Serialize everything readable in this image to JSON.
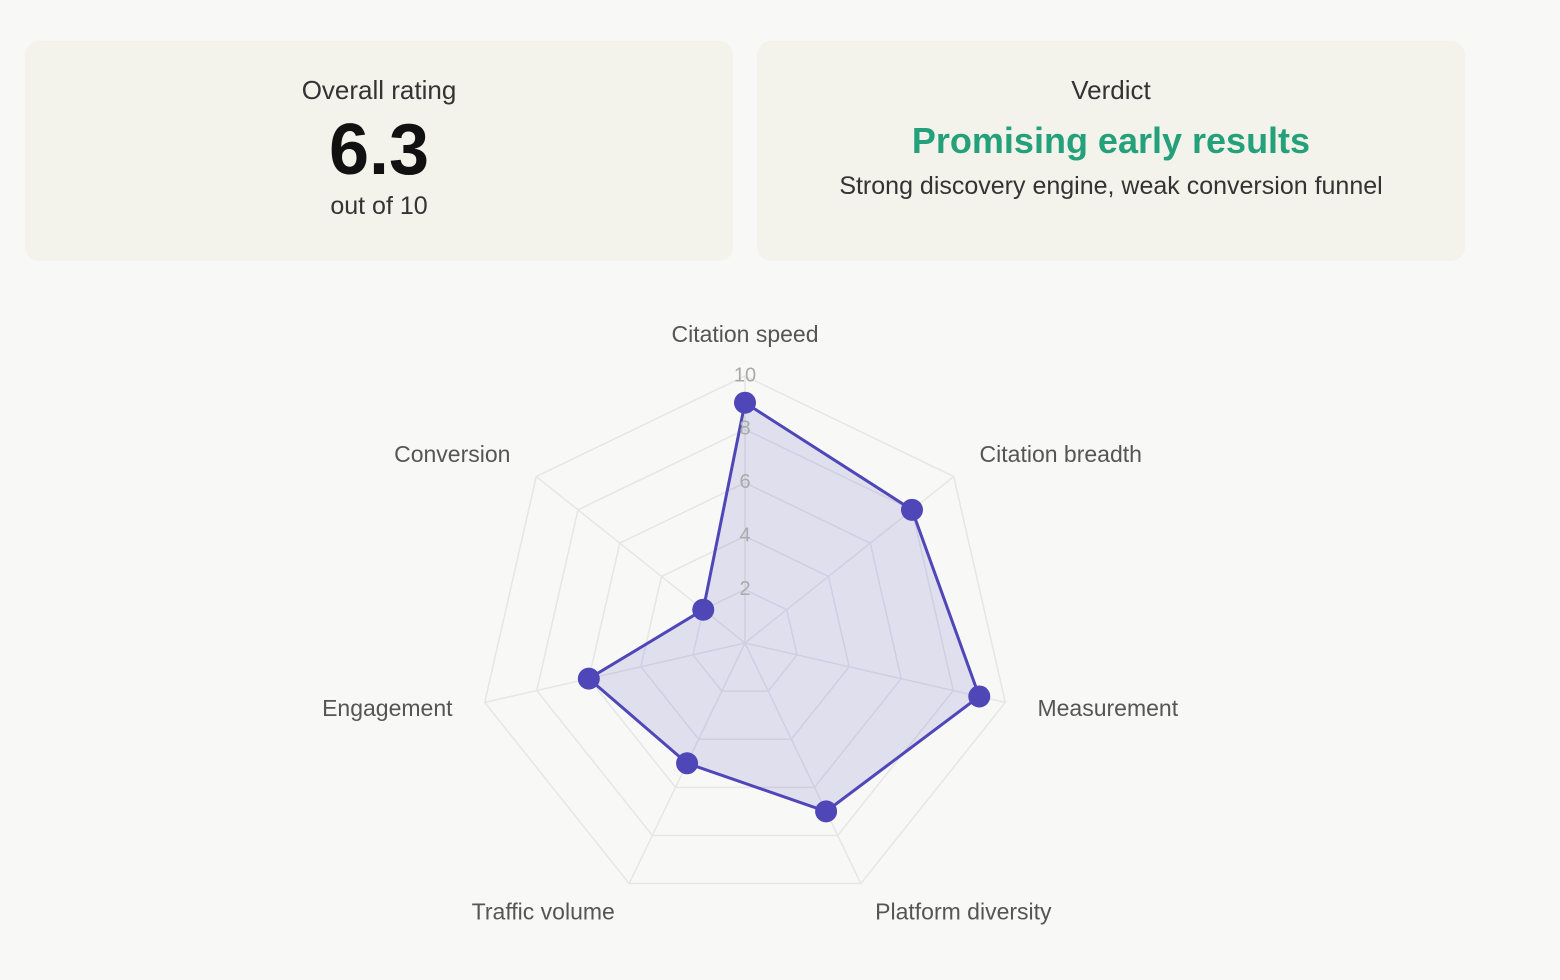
{
  "cards": {
    "overall": {
      "label": "Overall rating",
      "value": "6.3",
      "sub": "out of 10"
    },
    "verdict": {
      "label": "Verdict",
      "headline": "Promising early results",
      "detail": "Strong discovery engine, weak conversion funnel"
    }
  },
  "chart_data": {
    "type": "radar",
    "categories": [
      "Citation speed",
      "Citation breadth",
      "Measurement",
      "Platform diversity",
      "Traffic volume",
      "Engagement",
      "Conversion"
    ],
    "series": [
      {
        "color": "#4f46b8",
        "values": [
          9,
          8,
          9,
          7,
          5,
          6,
          2
        ]
      }
    ],
    "rlim": [
      0,
      10
    ],
    "rticks": [
      2,
      4,
      6,
      8,
      10
    ],
    "grid": true
  }
}
